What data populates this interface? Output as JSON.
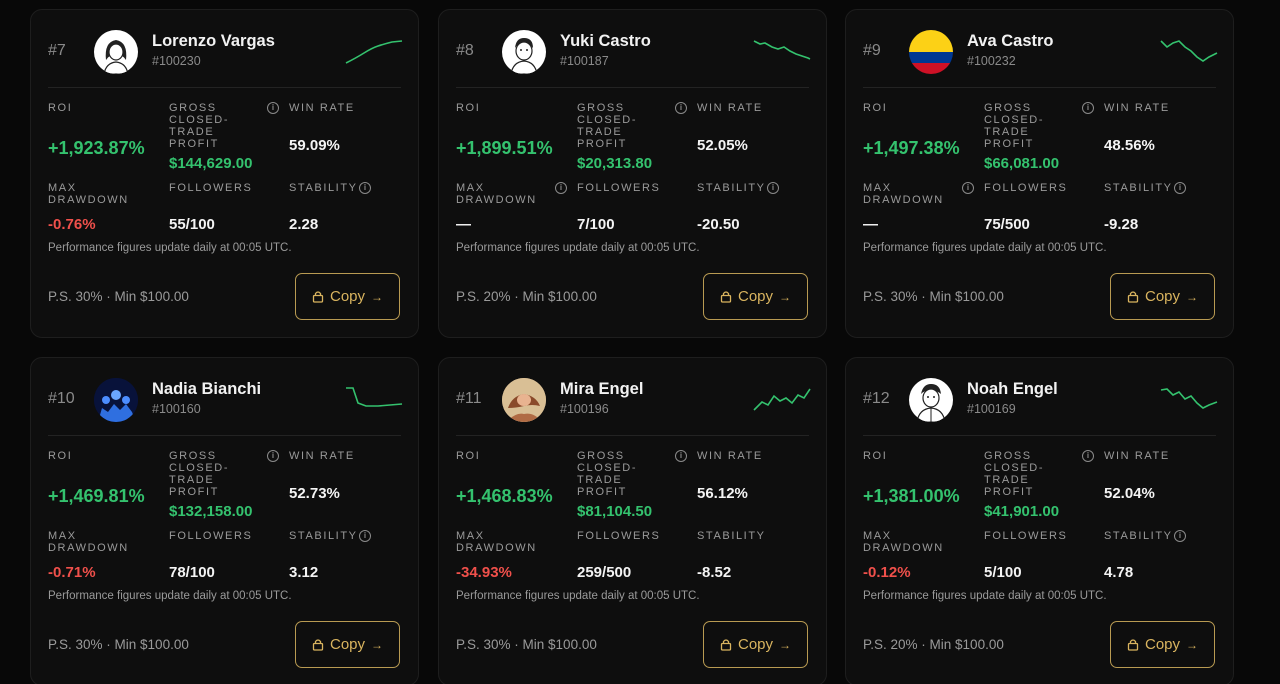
{
  "common": {
    "note": "Performance figures update daily at 00:05 UTC.",
    "labels": {
      "roi": "ROI",
      "gross": "GROSS CLOSED-TRADE PROFIT",
      "win_rate": "WIN RATE",
      "max_drawdown": "MAX DRAWDOWN",
      "followers": "FOLLOWERS",
      "stability": "STABILITY"
    },
    "copy_label": "Copy",
    "arrow": "→",
    "info_icon": "i",
    "colors": {
      "positive": "#34c26e",
      "negative": "#f0504b",
      "accent": "#d9b45f"
    }
  },
  "traders": [
    {
      "rank": "#7",
      "name": "Lorenzo Vargas",
      "id": "#100230",
      "avatar": "sketch-woman",
      "trend": "up",
      "roi": "+1,923.87%",
      "gross": "$144,629.00",
      "win_rate": "59.09%",
      "max_drawdown": "-0.76%",
      "followers": "55/100",
      "stability": "2.28",
      "fee": "P.S. 30% · Min $100.00"
    },
    {
      "rank": "#8",
      "name": "Yuki Castro",
      "id": "#100187",
      "avatar": "sketch-man",
      "trend": "down",
      "roi": "+1,899.51%",
      "gross": "$20,313.80",
      "win_rate": "52.05%",
      "max_drawdown": "—",
      "followers": "7/100",
      "stability": "-20.50",
      "fee": "P.S. 20% · Min $100.00"
    },
    {
      "rank": "#9",
      "name": "Ava Castro",
      "id": "#100232",
      "avatar": "flag",
      "trend": "volatile",
      "roi": "+1,497.38%",
      "gross": "$66,081.00",
      "win_rate": "48.56%",
      "max_drawdown": "—",
      "followers": "75/500",
      "stability": "-9.28",
      "fee": "P.S. 30% · Min $100.00"
    },
    {
      "rank": "#10",
      "name": "Nadia Bianchi",
      "id": "#100160",
      "avatar": "crowd",
      "trend": "drop",
      "roi": "+1,469.81%",
      "gross": "$132,158.00",
      "win_rate": "52.73%",
      "max_drawdown": "-0.71%",
      "followers": "78/100",
      "stability": "3.12",
      "fee": "P.S. 30% · Min $100.00"
    },
    {
      "rank": "#11",
      "name": "Mira Engel",
      "id": "#100196",
      "avatar": "painting",
      "trend": "up-zigzag",
      "roi": "+1,468.83%",
      "gross": "$81,104.50",
      "win_rate": "56.12%",
      "max_drawdown": "-34.93%",
      "followers": "259/500",
      "stability": "-8.52",
      "fee": "P.S. 30% · Min $100.00"
    },
    {
      "rank": "#12",
      "name": "Noah Engel",
      "id": "#100169",
      "avatar": "sketch-man-2",
      "trend": "down-zigzag",
      "roi": "+1,381.00%",
      "gross": "$41,901.00",
      "win_rate": "52.04%",
      "max_drawdown": "-0.12%",
      "followers": "5/100",
      "stability": "4.78",
      "fee": "P.S. 20% · Min $100.00"
    }
  ]
}
